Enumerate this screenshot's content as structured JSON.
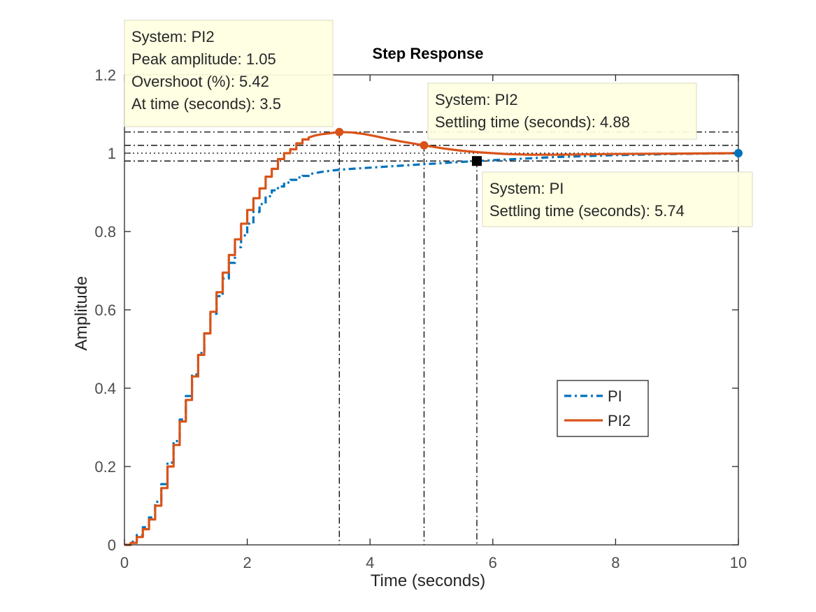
{
  "chart_data": {
    "type": "line",
    "title": "Step Response",
    "xlabel": "Time (seconds)",
    "ylabel": "Amplitude",
    "xlim": [
      0,
      10
    ],
    "ylim": [
      0,
      1.2
    ],
    "x_ticks": [
      0,
      2,
      4,
      6,
      8,
      10
    ],
    "x_tick_labels": [
      "0",
      "2",
      "4",
      "6",
      "8",
      "10"
    ],
    "y_ticks": [
      0,
      0.2,
      0.4,
      0.6,
      0.8,
      1,
      1.2
    ],
    "y_tick_labels": [
      "0",
      "0.2",
      "0.4",
      "0.6",
      "0.8",
      "1",
      "1.2"
    ],
    "grid": false,
    "legend_position": "lower-right",
    "settling_band": [
      0.98,
      1.02
    ],
    "final_value": 1.0,
    "series": [
      {
        "name": "PI",
        "color": "#0072BD",
        "style": "dash-dot",
        "x": [
          0,
          0.1,
          0.2,
          0.3,
          0.4,
          0.5,
          0.6,
          0.7,
          0.8,
          0.9,
          1.0,
          1.1,
          1.2,
          1.3,
          1.4,
          1.5,
          1.6,
          1.7,
          1.8,
          1.9,
          2.0,
          2.1,
          2.2,
          2.3,
          2.4,
          2.5,
          2.6,
          2.7,
          2.8,
          2.9,
          3.0,
          3.2,
          3.4,
          3.6,
          3.8,
          4.0,
          4.5,
          5.0,
          5.74,
          6.5,
          7.0,
          8.0,
          9.0,
          10.0
        ],
        "y": [
          0,
          0.008,
          0.025,
          0.045,
          0.07,
          0.11,
          0.155,
          0.21,
          0.265,
          0.32,
          0.38,
          0.435,
          0.49,
          0.54,
          0.59,
          0.635,
          0.68,
          0.72,
          0.76,
          0.79,
          0.82,
          0.85,
          0.87,
          0.89,
          0.905,
          0.915,
          0.925,
          0.932,
          0.938,
          0.942,
          0.946,
          0.952,
          0.956,
          0.959,
          0.961,
          0.963,
          0.968,
          0.973,
          0.98,
          0.986,
          0.99,
          0.995,
          0.998,
          1.0
        ]
      },
      {
        "name": "PI2",
        "color": "#D95319",
        "style": "solid",
        "x": [
          0,
          0.1,
          0.2,
          0.3,
          0.4,
          0.5,
          0.6,
          0.7,
          0.8,
          0.9,
          1.0,
          1.1,
          1.2,
          1.3,
          1.4,
          1.5,
          1.6,
          1.7,
          1.8,
          1.9,
          2.0,
          2.1,
          2.2,
          2.3,
          2.4,
          2.5,
          2.6,
          2.7,
          2.8,
          2.9,
          3.0,
          3.1,
          3.2,
          3.3,
          3.4,
          3.5,
          3.7,
          3.9,
          4.1,
          4.3,
          4.5,
          4.88,
          5.2,
          5.5,
          5.8,
          6.2,
          6.6,
          7.0,
          7.5,
          8.0,
          9.0,
          10.0
        ],
        "y": [
          0,
          0.005,
          0.02,
          0.04,
          0.065,
          0.1,
          0.145,
          0.2,
          0.255,
          0.315,
          0.37,
          0.43,
          0.485,
          0.54,
          0.595,
          0.645,
          0.695,
          0.74,
          0.78,
          0.82,
          0.855,
          0.885,
          0.91,
          0.94,
          0.96,
          0.985,
          1.0,
          1.01,
          1.025,
          1.035,
          1.04,
          1.045,
          1.048,
          1.05,
          1.052,
          1.054,
          1.053,
          1.049,
          1.043,
          1.036,
          1.03,
          1.02,
          1.012,
          1.006,
          1.002,
          0.998,
          0.996,
          0.996,
          0.997,
          0.998,
          0.999,
          1.0
        ]
      }
    ],
    "datatips": [
      {
        "lines": [
          "System: PI2",
          "Peak amplitude: 1.05",
          "Overshoot (%): 5.42",
          "At time (seconds): 3.5"
        ],
        "point": {
          "x": 3.5,
          "y": 1.054
        },
        "color": "#D95319"
      },
      {
        "lines": [
          "System: PI2",
          "Settling time (seconds): 4.88"
        ],
        "point": {
          "x": 4.88,
          "y": 1.02
        },
        "color": "#D95319"
      },
      {
        "lines": [
          "System: PI",
          "Settling time (seconds): 5.74"
        ],
        "point": {
          "x": 5.74,
          "y": 0.98
        },
        "color": "#000000"
      }
    ],
    "markers": [
      {
        "x": 10,
        "y": 1.0,
        "color": "#0072BD"
      }
    ],
    "vlines": [
      3.5,
      4.88,
      5.74
    ],
    "hlines": [
      1.054,
      1.02,
      1.0,
      0.98
    ]
  }
}
